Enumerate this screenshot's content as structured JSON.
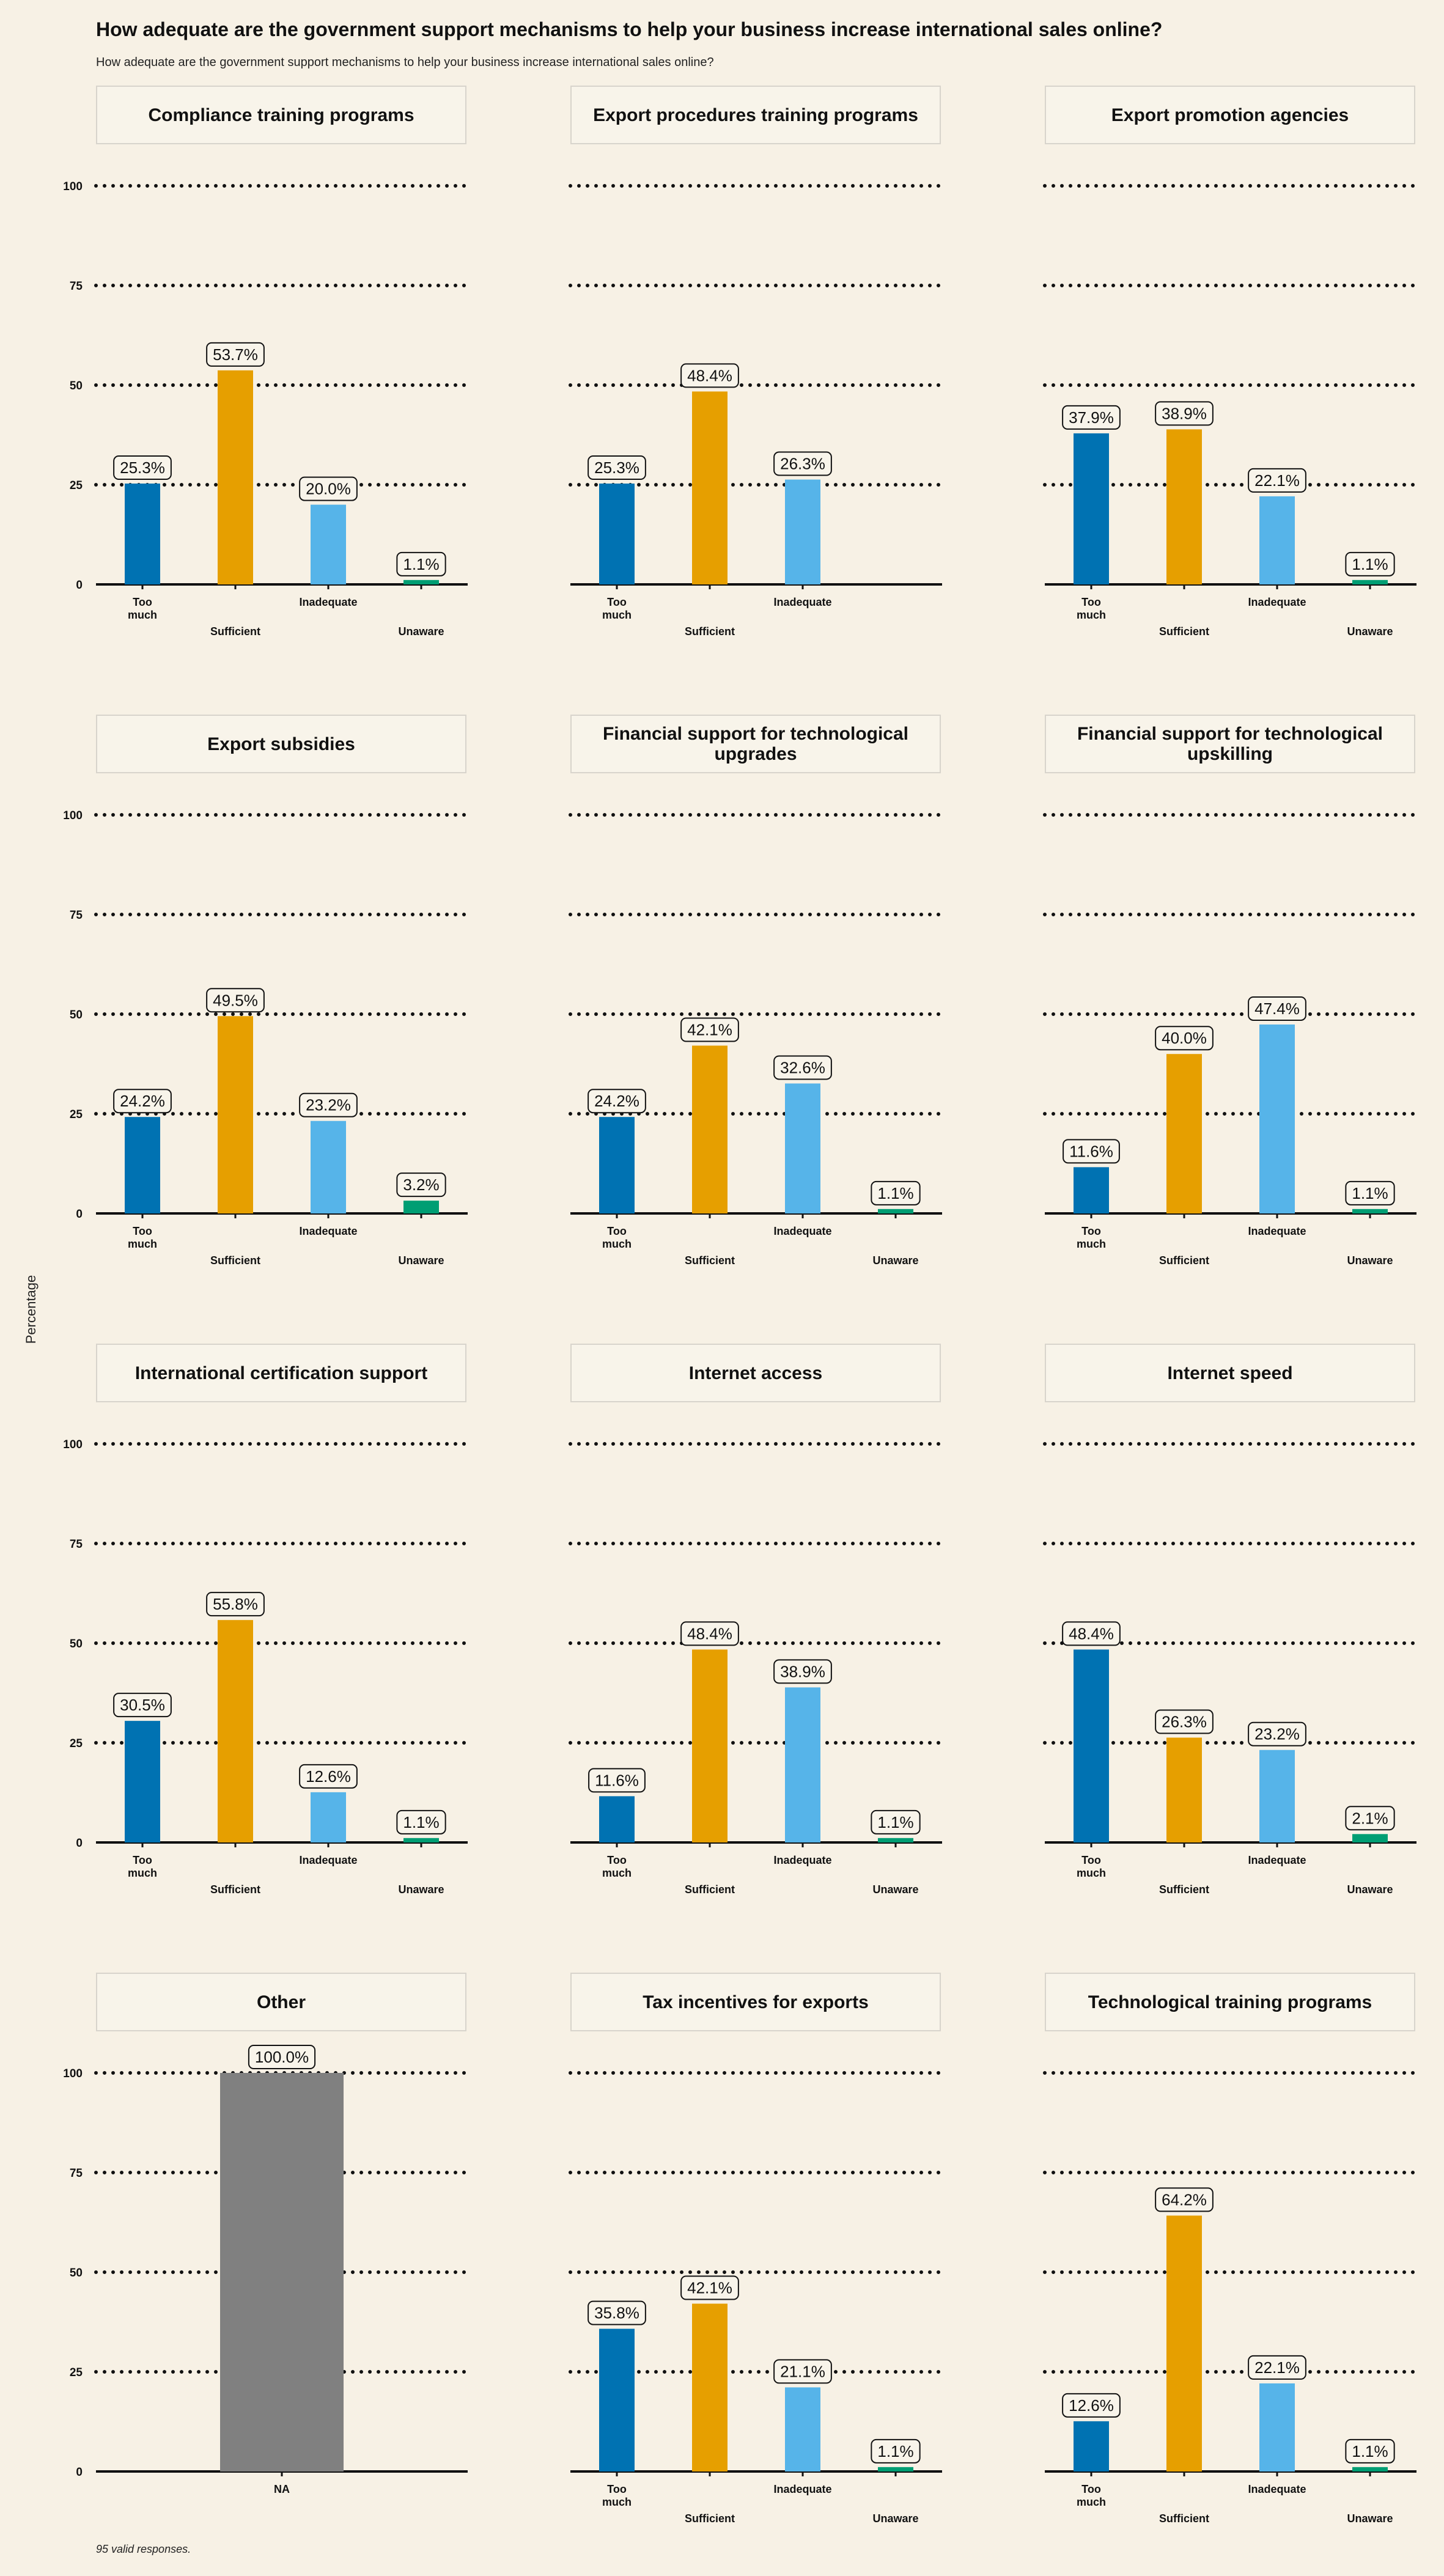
{
  "title": "How adequate are the government support mechanisms to help your business increase international sales online?",
  "subtitle": "How adequate are the government support mechanisms to help your business increase international sales online?",
  "ylabel": "Percentage",
  "footnote": "95 valid responses.",
  "colors": {
    "Too much": "#0072B2",
    "Sufficient": "#E69F00",
    "Inadequate": "#56B4E9",
    "Unaware": "#009E73",
    "NA": "#808080",
    "background": "#F7F1E5"
  },
  "chart_data": {
    "type": "bar",
    "ylim": [
      0,
      100
    ],
    "yticks": [
      0,
      25,
      50,
      75,
      100
    ],
    "grid": "horizontal dotted",
    "facets": [
      {
        "title": "Compliance training programs",
        "categories": [
          "Too much",
          "Sufficient",
          "Inadequate",
          "Unaware"
        ],
        "values": [
          25.3,
          53.7,
          20.0,
          1.1
        ],
        "labels": [
          "25.3%",
          "53.7%",
          "20.0%",
          "1.1%"
        ]
      },
      {
        "title": "Export procedures training programs",
        "categories": [
          "Too much",
          "Sufficient",
          "Inadequate"
        ],
        "values": [
          25.3,
          48.4,
          26.3
        ],
        "labels": [
          "25.3%",
          "48.4%",
          "26.3%"
        ]
      },
      {
        "title": "Export promotion agencies",
        "categories": [
          "Too much",
          "Sufficient",
          "Inadequate",
          "Unaware"
        ],
        "values": [
          37.9,
          38.9,
          22.1,
          1.1
        ],
        "labels": [
          "37.9%",
          "38.9%",
          "22.1%",
          "1.1%"
        ]
      },
      {
        "title": "Export subsidies",
        "categories": [
          "Too much",
          "Sufficient",
          "Inadequate",
          "Unaware"
        ],
        "values": [
          24.2,
          49.5,
          23.2,
          3.2
        ],
        "labels": [
          "24.2%",
          "49.5%",
          "23.2%",
          "3.2%"
        ]
      },
      {
        "title": "Financial support for technological upgrades",
        "categories": [
          "Too much",
          "Sufficient",
          "Inadequate",
          "Unaware"
        ],
        "values": [
          24.2,
          42.1,
          32.6,
          1.1
        ],
        "labels": [
          "24.2%",
          "42.1%",
          "32.6%",
          "1.1%"
        ]
      },
      {
        "title": "Financial support for technological upskilling",
        "categories": [
          "Too much",
          "Sufficient",
          "Inadequate",
          "Unaware"
        ],
        "values": [
          11.6,
          40.0,
          47.4,
          1.1
        ],
        "labels": [
          "11.6%",
          "40.0%",
          "47.4%",
          "1.1%"
        ]
      },
      {
        "title": "International certification support",
        "categories": [
          "Too much",
          "Sufficient",
          "Inadequate",
          "Unaware"
        ],
        "values": [
          30.5,
          55.8,
          12.6,
          1.1
        ],
        "labels": [
          "30.5%",
          "55.8%",
          "12.6%",
          "1.1%"
        ]
      },
      {
        "title": "Internet access",
        "categories": [
          "Too much",
          "Sufficient",
          "Inadequate",
          "Unaware"
        ],
        "values": [
          11.6,
          48.4,
          38.9,
          1.1
        ],
        "labels": [
          "11.6%",
          "48.4%",
          "38.9%",
          "1.1%"
        ]
      },
      {
        "title": "Internet speed",
        "categories": [
          "Too much",
          "Sufficient",
          "Inadequate",
          "Unaware"
        ],
        "values": [
          48.4,
          26.3,
          23.2,
          2.1
        ],
        "labels": [
          "48.4%",
          "26.3%",
          "23.2%",
          "2.1%"
        ]
      },
      {
        "title": "Other",
        "categories": [
          "NA"
        ],
        "values": [
          100.0
        ],
        "labels": [
          "100.0%"
        ]
      },
      {
        "title": "Tax incentives for exports",
        "categories": [
          "Too much",
          "Sufficient",
          "Inadequate",
          "Unaware"
        ],
        "values": [
          35.8,
          42.1,
          21.1,
          1.1
        ],
        "labels": [
          "35.8%",
          "42.1%",
          "21.1%",
          "1.1%"
        ]
      },
      {
        "title": "Technological training programs",
        "categories": [
          "Too much",
          "Sufficient",
          "Inadequate",
          "Unaware"
        ],
        "values": [
          12.6,
          64.2,
          22.1,
          1.1
        ],
        "labels": [
          "12.6%",
          "64.2%",
          "22.1%",
          "1.1%"
        ]
      }
    ]
  }
}
